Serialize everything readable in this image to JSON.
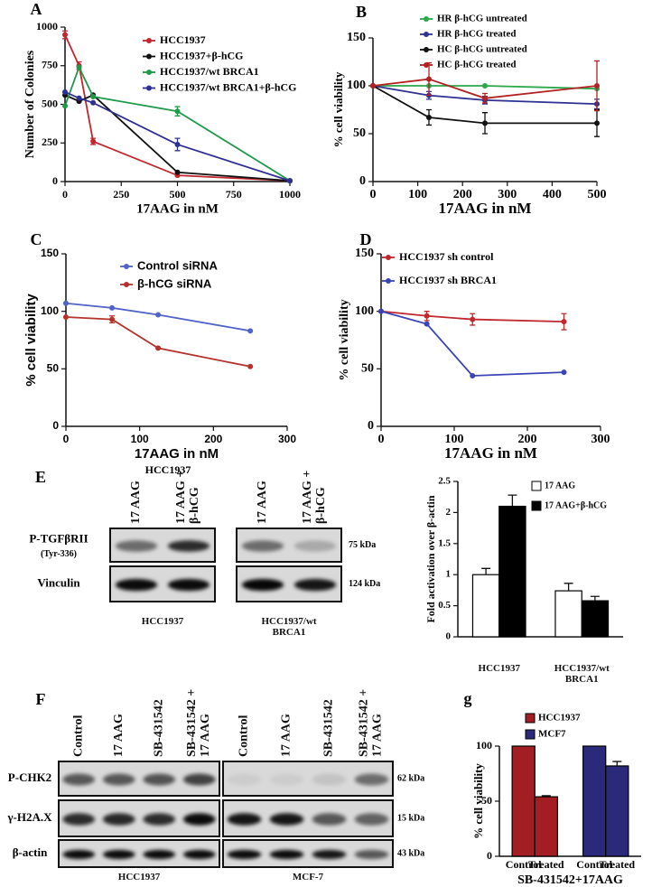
{
  "chart_data": [
    {
      "type": "line",
      "panel": "A",
      "x_label": "17AAG in nM",
      "y_label": "Number of Colonies",
      "x": [
        0,
        62.5,
        125,
        500,
        1000
      ],
      "xlim": [
        0,
        1000
      ],
      "xticks": [
        0,
        250,
        500,
        750,
        1000
      ],
      "ylim": [
        0,
        1000
      ],
      "yticks": [
        0,
        250,
        500,
        750,
        1000
      ],
      "series": [
        {
          "name": "HCC1937",
          "color": "#c1272d",
          "values": [
            950,
            750,
            260,
            40,
            5
          ],
          "errors": [
            25,
            25,
            20,
            null,
            null
          ]
        },
        {
          "name": "HCC1937+β-hCG",
          "color": "#111111",
          "values": [
            560,
            520,
            560,
            60,
            5
          ]
        },
        {
          "name": "HCC1937/wt BRCA1",
          "color": "#1e9a4a",
          "values": [
            490,
            740,
            550,
            455,
            5
          ],
          "errors": [
            null,
            null,
            null,
            30,
            null
          ]
        },
        {
          "name": "HCC1937/wt BRCA1+β-hCG",
          "color": "#2e3192",
          "values": [
            580,
            540,
            510,
            240,
            5
          ],
          "errors": [
            null,
            null,
            null,
            40,
            null
          ]
        }
      ]
    },
    {
      "type": "line",
      "panel": "B",
      "x_label": "17AAG in nM",
      "y_label": "% cell viability",
      "x": [
        0,
        125,
        250,
        500
      ],
      "xlim": [
        0,
        500
      ],
      "xticks": [
        0,
        100,
        200,
        300,
        400,
        500
      ],
      "ylim": [
        0,
        150
      ],
      "yticks": [
        0,
        50,
        100,
        150
      ],
      "series": [
        {
          "name": "HR β-hCG untreated",
          "color": "#2aa84a",
          "values": [
            100,
            100,
            100,
            97
          ]
        },
        {
          "name": "HR β-hCG treated",
          "color": "#2e3192",
          "values": [
            100,
            90,
            85,
            81
          ],
          "errors": [
            null,
            4,
            4,
            5
          ]
        },
        {
          "name": "HC β-hCG untreated",
          "color": "#111111",
          "values": [
            100,
            67,
            61,
            61
          ],
          "errors": [
            null,
            8,
            11,
            14
          ]
        },
        {
          "name": "HC β-hCG treated",
          "color": "#b22222",
          "values": [
            100,
            107,
            87,
            100
          ],
          "errors": [
            null,
            17,
            5,
            26
          ]
        }
      ]
    },
    {
      "type": "line",
      "panel": "C",
      "x_label": "17AAG in nM",
      "y_label": "% cell viability",
      "x": [
        0,
        62.5,
        125,
        250
      ],
      "xlim": [
        0,
        300
      ],
      "xticks": [
        0,
        100,
        200,
        300
      ],
      "ylim": [
        0,
        150
      ],
      "yticks": [
        0,
        50,
        100,
        150
      ],
      "series": [
        {
          "name": "Control siRNA",
          "color": "#4f63c8",
          "values": [
            107,
            103,
            97,
            83
          ]
        },
        {
          "name": "β-hCG siRNA",
          "color": "#b5312b",
          "values": [
            95,
            93,
            68,
            52
          ],
          "errors": [
            null,
            3,
            null,
            null
          ]
        }
      ]
    },
    {
      "type": "line",
      "panel": "D",
      "x_label": "17AAG in nM",
      "y_label": "% cell viability",
      "x": [
        0,
        62.5,
        125,
        250
      ],
      "xlim": [
        0,
        300
      ],
      "xticks": [
        0,
        100,
        200,
        300
      ],
      "ylim": [
        0,
        150
      ],
      "yticks": [
        0,
        50,
        100,
        150
      ],
      "series": [
        {
          "name": "HCC1937 sh control",
          "color": "#c0282d",
          "values": [
            100,
            96,
            93,
            91
          ],
          "errors": [
            null,
            4,
            5,
            7
          ]
        },
        {
          "name": "HCC1937 sh BRCA1",
          "color": "#3a44b5",
          "values": [
            100,
            89,
            44,
            47
          ]
        }
      ]
    },
    {
      "type": "bar",
      "group_by": "category",
      "y_label": "Fold activation over β-actin",
      "categories": [
        "HCC1937",
        "HCC1937/wt BRCA1"
      ],
      "ylim": [
        0,
        2.5
      ],
      "yticks": [
        0,
        0.5,
        1,
        1.5,
        2,
        2.5
      ],
      "series": [
        {
          "name": "17 AAG",
          "color": "#ffffff",
          "values": [
            1.0,
            0.74
          ],
          "errors": [
            0.1,
            0.12
          ]
        },
        {
          "name": "17 AAG+β-hCG",
          "color": "#000000",
          "values": [
            2.1,
            0.58
          ],
          "errors": [
            0.18,
            0.07
          ]
        }
      ]
    },
    {
      "type": "bar",
      "panel": "g",
      "group_by": "series",
      "y_label": "% cell viability",
      "x_label": "SB-431542+17AAG",
      "categories": [
        "Control",
        "Treated"
      ],
      "ylim": [
        0,
        100
      ],
      "yticks": [
        0,
        50,
        100
      ],
      "series": [
        {
          "name": "HCC1937",
          "color": "#a31e22",
          "values": [
            100,
            54
          ],
          "errors": [
            null,
            1
          ]
        },
        {
          "name": "MCF7",
          "color": "#2b2a7a",
          "values": [
            100,
            82
          ],
          "errors": [
            null,
            4
          ]
        }
      ]
    }
  ],
  "blots": {
    "E": {
      "panel": "E",
      "title": "HCC1937",
      "lanes": [
        "17 AAG",
        "17 AAG + β-hCG",
        "17 AAG",
        "17 AAG + β-hCG"
      ],
      "rows": [
        {
          "label": "P-TGFβRII",
          "sublabel": "(Tyr-336)",
          "size": "75 kDa"
        },
        {
          "label": "Vinculin",
          "size": "124 kDa"
        }
      ],
      "groups": [
        "HCC1937",
        "HCC1937/wt BRCA1"
      ]
    },
    "F": {
      "panel": "F",
      "lanes": [
        "Control",
        "17 AAG",
        "SB-431542",
        "SB-431542 + 17 AAG",
        "Control",
        "17 AAG",
        "SB-431542",
        "SB-431542 + 17 AAG"
      ],
      "rows": [
        {
          "label": "P-CHK2",
          "size": "62 kDa"
        },
        {
          "label": "γ-H2A.X",
          "size": "15 kDa"
        },
        {
          "label": "β-actin",
          "size": "43 kDa"
        }
      ],
      "groups": [
        "HCC1937",
        "MCF-7"
      ]
    }
  }
}
